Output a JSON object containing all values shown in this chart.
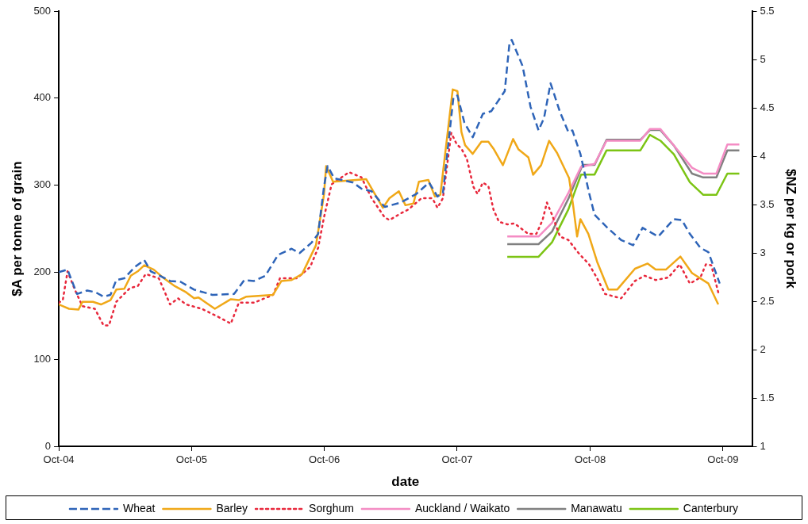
{
  "chart_data": {
    "type": "line",
    "xlabel": "date",
    "ylabel": "$A per tonne of grain",
    "y2label": "$NZ per kg or pork",
    "xlim": [
      "2004-10-01",
      "2009-12-20"
    ],
    "xticks": [
      {
        "value": "2004-10-01",
        "label": "Oct-04"
      },
      {
        "value": "2005-10-01",
        "label": "Oct-05"
      },
      {
        "value": "2006-10-01",
        "label": "Oct-06"
      },
      {
        "value": "2007-10-01",
        "label": "Oct-07"
      },
      {
        "value": "2008-10-01",
        "label": "Oct-08"
      },
      {
        "value": "2009-10-01",
        "label": "Oct-09"
      }
    ],
    "ylim": [
      0,
      500
    ],
    "yticks": [
      0,
      100,
      200,
      300,
      400,
      500
    ],
    "y2lim": [
      1,
      5.5
    ],
    "y2ticks": [
      1,
      1.5,
      2,
      2.5,
      3,
      3.5,
      4,
      4.5,
      5,
      5.5
    ],
    "grid": false,
    "legend": "bottom",
    "marker": "none",
    "series": [
      {
        "name": "Wheat",
        "color": "#2e64b8",
        "line_style": "dashed",
        "x": [
          "2004-10-01",
          "2004-10-25",
          "2004-11-20",
          "2004-12-18",
          "2005-01-10",
          "2005-02-01",
          "2005-02-20",
          "2005-03-08",
          "2005-03-30",
          "2005-04-28",
          "2005-05-24",
          "2005-06-11",
          "2005-08-03",
          "2005-09-01",
          "2005-10-08",
          "2005-11-27",
          "2006-01-26",
          "2006-02-23",
          "2006-03-22",
          "2006-04-22",
          "2006-05-27",
          "2006-07-03",
          "2006-07-25",
          "2006-08-27",
          "2006-09-14",
          "2006-09-30",
          "2006-10-10",
          "2006-10-28",
          "2006-12-19",
          "2007-01-11",
          "2007-02-08",
          "2007-03-16",
          "2007-04-29",
          "2007-06-11",
          "2007-07-16",
          "2007-08-08",
          "2007-08-23",
          "2007-09-21",
          "2007-10-02",
          "2007-10-21",
          "2007-11-13",
          "2007-12-11",
          "2008-01-03",
          "2008-02-09",
          "2008-02-22",
          "2008-02-28",
          "2008-03-29",
          "2008-04-20",
          "2008-05-12",
          "2008-05-27",
          "2008-06-14",
          "2008-07-10",
          "2008-08-02",
          "2008-08-13",
          "2008-09-04",
          "2008-09-28",
          "2008-10-13",
          "2008-11-20",
          "2008-12-25",
          "2009-01-27",
          "2009-02-22",
          "2009-04-06",
          "2009-05-19",
          "2009-06-10",
          "2009-07-02",
          "2009-07-31",
          "2009-08-22",
          "2009-09-22"
        ],
        "values": [
          200,
          203,
          175,
          179,
          177,
          172,
          174,
          191,
          193,
          206,
          214,
          201,
          190,
          189,
          180,
          174,
          175,
          191,
          190,
          196,
          220,
          227,
          222,
          234,
          244,
          298,
          322,
          308,
          303,
          296,
          293,
          275,
          280,
          290,
          303,
          287,
          291,
          401,
          403,
          372,
          355,
          382,
          385,
          408,
          463,
          467,
          437,
          390,
          363,
          377,
          417,
          384,
          361,
          363,
          336,
          291,
          266,
          250,
          237,
          231,
          251,
          241,
          261,
          260,
          244,
          228,
          223,
          187
        ]
      },
      {
        "name": "Barley",
        "color": "#f0a818",
        "line_style": "solid",
        "x": [
          "2004-10-01",
          "2004-10-29",
          "2004-11-24",
          "2004-12-05",
          "2005-01-03",
          "2005-01-25",
          "2005-02-20",
          "2005-03-08",
          "2005-03-30",
          "2005-04-17",
          "2005-05-06",
          "2005-05-24",
          "2005-06-19",
          "2005-07-17",
          "2005-08-16",
          "2005-09-16",
          "2005-10-08",
          "2005-10-20",
          "2005-12-04",
          "2006-01-17",
          "2006-02-08",
          "2006-03-01",
          "2006-05-13",
          "2006-06-05",
          "2006-07-03",
          "2006-08-01",
          "2006-09-08",
          "2006-09-30",
          "2006-10-06",
          "2006-10-25",
          "2007-01-24",
          "2007-03-11",
          "2007-03-29",
          "2007-04-24",
          "2007-05-12",
          "2007-06-03",
          "2007-06-18",
          "2007-07-14",
          "2007-08-01",
          "2007-08-16",
          "2007-09-19",
          "2007-10-02",
          "2007-10-13",
          "2007-10-23",
          "2007-11-13",
          "2007-12-07",
          "2007-12-26",
          "2008-01-09",
          "2008-02-04",
          "2008-03-03",
          "2008-03-18",
          "2008-04-14",
          "2008-04-27",
          "2008-05-19",
          "2008-06-10",
          "2008-07-02",
          "2008-08-04",
          "2008-08-15",
          "2008-08-26",
          "2008-09-04",
          "2008-09-26",
          "2008-10-20",
          "2008-11-20",
          "2008-12-14",
          "2009-02-01",
          "2009-03-08",
          "2009-03-30",
          "2009-04-27",
          "2009-06-06",
          "2009-07-08",
          "2009-08-22",
          "2009-09-18"
        ],
        "values": [
          163,
          158,
          157,
          166,
          166,
          163,
          168,
          180,
          181,
          196,
          201,
          208,
          203,
          193,
          184,
          177,
          170,
          171,
          158,
          169,
          168,
          172,
          174,
          190,
          191,
          198,
          231,
          289,
          322,
          304,
          307,
          274,
          285,
          293,
          277,
          279,
          304,
          306,
          287,
          289,
          410,
          408,
          361,
          346,
          336,
          350,
          350,
          342,
          323,
          353,
          341,
          332,
          312,
          323,
          351,
          337,
          308,
          277,
          241,
          261,
          244,
          212,
          180,
          180,
          204,
          210,
          203,
          203,
          218,
          199,
          187,
          163
        ]
      },
      {
        "name": "Sorghum",
        "color": "#e8283c",
        "line_style": "dotted",
        "x": [
          "2004-10-01",
          "2004-10-12",
          "2004-10-25",
          "2004-11-14",
          "2004-12-05",
          "2005-01-08",
          "2005-02-01",
          "2005-02-16",
          "2005-03-08",
          "2005-04-15",
          "2005-05-06",
          "2005-05-28",
          "2005-07-03",
          "2005-08-03",
          "2005-08-25",
          "2005-09-16",
          "2005-10-29",
          "2005-12-12",
          "2006-01-17",
          "2006-02-08",
          "2006-03-22",
          "2006-05-13",
          "2006-06-01",
          "2006-07-18",
          "2006-08-23",
          "2006-09-14",
          "2006-09-30",
          "2006-10-21",
          "2006-12-08",
          "2007-01-11",
          "2007-02-08",
          "2007-03-16",
          "2007-03-29",
          "2007-05-01",
          "2007-05-20",
          "2007-06-25",
          "2007-07-25",
          "2007-08-08",
          "2007-08-23",
          "2007-09-15",
          "2007-09-30",
          "2007-10-13",
          "2007-10-28",
          "2007-11-15",
          "2007-11-26",
          "2007-12-11",
          "2007-12-26",
          "2008-01-09",
          "2008-01-24",
          "2008-02-16",
          "2008-03-07",
          "2008-04-14",
          "2008-05-06",
          "2008-05-23",
          "2008-06-04",
          "2008-06-18",
          "2008-07-10",
          "2008-08-02",
          "2008-08-30",
          "2008-09-28",
          "2008-10-20",
          "2008-11-11",
          "2008-12-25",
          "2009-02-01",
          "2009-02-28",
          "2009-03-30",
          "2009-05-04",
          "2009-06-04",
          "2009-07-02",
          "2009-07-31",
          "2009-08-15",
          "2009-08-30",
          "2009-09-18"
        ],
        "values": [
          165,
          168,
          201,
          180,
          161,
          158,
          139,
          139,
          166,
          182,
          184,
          198,
          193,
          163,
          170,
          163,
          158,
          149,
          141,
          165,
          165,
          174,
          193,
          193,
          206,
          228,
          263,
          301,
          315,
          309,
          285,
          263,
          260,
          268,
          272,
          285,
          285,
          274,
          285,
          360,
          347,
          342,
          330,
          298,
          290,
          303,
          299,
          272,
          258,
          255,
          256,
          244,
          244,
          260,
          280,
          266,
          241,
          237,
          222,
          209,
          193,
          175,
          170,
          190,
          196,
          191,
          194,
          209,
          187,
          194,
          209,
          208,
          177
        ]
      },
      {
        "name": "Auckland / Waikato",
        "color": "#f48cc4",
        "line_style": "solid",
        "axis": "y2",
        "x": [
          "2008-02-16",
          "2008-05-12",
          "2008-06-18",
          "2008-08-02",
          "2008-09-06",
          "2008-10-13",
          "2008-11-15",
          "2009-02-16",
          "2009-03-14",
          "2009-04-12",
          "2009-05-19",
          "2009-07-08",
          "2009-08-08",
          "2009-09-13",
          "2009-10-13",
          "2009-11-15"
        ],
        "values": [
          3.17,
          3.17,
          3.31,
          3.62,
          3.89,
          3.92,
          4.16,
          4.16,
          4.28,
          4.28,
          4.11,
          3.88,
          3.82,
          3.82,
          4.12,
          4.12
        ]
      },
      {
        "name": "Manawatu",
        "color": "#808080",
        "line_style": "solid",
        "axis": "y2",
        "x": [
          "2008-02-16",
          "2008-05-12",
          "2008-06-18",
          "2008-08-02",
          "2008-09-10",
          "2008-10-13",
          "2008-11-15",
          "2009-02-16",
          "2009-03-14",
          "2009-04-12",
          "2009-05-19",
          "2009-07-08",
          "2009-08-08",
          "2009-09-13",
          "2009-10-13",
          "2009-11-15"
        ],
        "values": [
          3.09,
          3.09,
          3.22,
          3.56,
          3.91,
          3.91,
          4.17,
          4.17,
          4.27,
          4.27,
          4.11,
          3.82,
          3.78,
          3.78,
          4.06,
          4.06
        ]
      },
      {
        "name": "Canterbury",
        "color": "#7cc414",
        "line_style": "solid",
        "axis": "y2",
        "x": [
          "2008-02-16",
          "2008-05-12",
          "2008-06-18",
          "2008-08-02",
          "2008-09-06",
          "2008-10-13",
          "2008-11-15",
          "2009-02-16",
          "2009-03-14",
          "2009-04-12",
          "2009-05-19",
          "2009-07-02",
          "2009-08-08",
          "2009-09-13",
          "2009-10-13",
          "2009-11-15"
        ],
        "values": [
          2.96,
          2.96,
          3.11,
          3.45,
          3.81,
          3.81,
          4.06,
          4.06,
          4.22,
          4.16,
          4.02,
          3.73,
          3.6,
          3.6,
          3.82,
          3.82
        ]
      }
    ]
  }
}
